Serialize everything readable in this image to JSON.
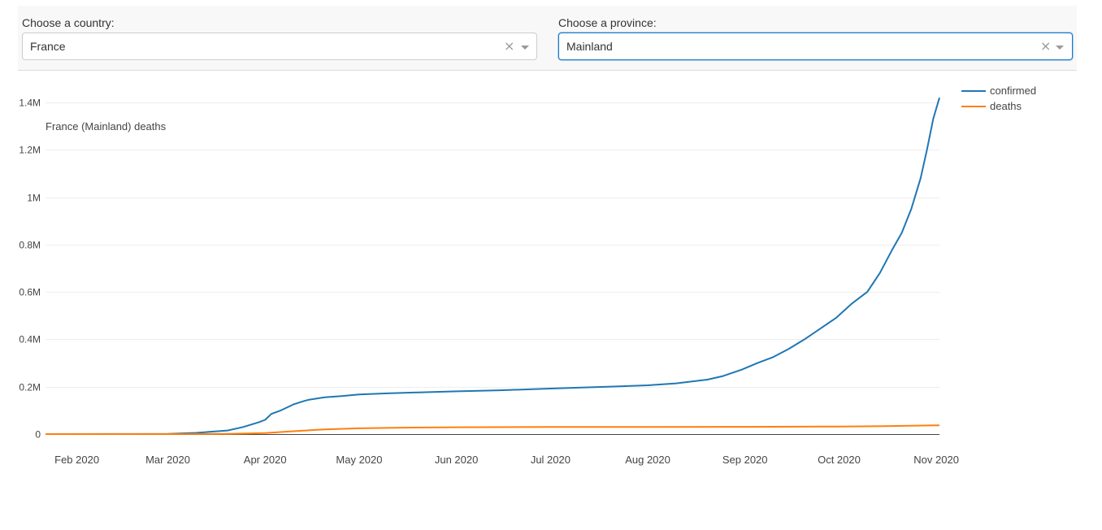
{
  "controls": {
    "country": {
      "label": "Choose a country:",
      "value": "France",
      "clear_glyph": "×"
    },
    "province": {
      "label": "Choose a province:",
      "value": "Mainland",
      "clear_glyph": "×"
    }
  },
  "chart_data": {
    "type": "line",
    "annotation": "France (Mainland) deaths",
    "x_tick_labels": [
      "Feb 2020",
      "Mar 2020",
      "Apr 2020",
      "May 2020",
      "Jun 2020",
      "Jul 2020",
      "Aug 2020",
      "Sep 2020",
      "Oct 2020",
      "Nov 2020"
    ],
    "x_tick_dates": [
      "2020-02-01",
      "2020-03-01",
      "2020-04-01",
      "2020-05-01",
      "2020-06-01",
      "2020-07-01",
      "2020-08-01",
      "2020-09-01",
      "2020-10-01",
      "2020-11-01"
    ],
    "y_ticks": [
      0,
      200000,
      400000,
      600000,
      800000,
      1000000,
      1200000,
      1400000
    ],
    "y_tick_labels": [
      "0",
      "0.2M",
      "0.4M",
      "0.6M",
      "0.8M",
      "1M",
      "1.2M",
      "1.4M"
    ],
    "xlim": [
      "2020-01-22",
      "2020-11-02"
    ],
    "ylim": [
      0,
      1400000
    ],
    "grid": true,
    "legend_position": "top-right",
    "series": [
      {
        "name": "confirmed",
        "color": "#1f77b4",
        "x": [
          "2020-01-22",
          "2020-02-15",
          "2020-03-01",
          "2020-03-10",
          "2020-03-20",
          "2020-03-25",
          "2020-03-30",
          "2020-04-01",
          "2020-04-03",
          "2020-04-06",
          "2020-04-10",
          "2020-04-13",
          "2020-04-15",
          "2020-04-20",
          "2020-04-25",
          "2020-05-01",
          "2020-05-10",
          "2020-05-20",
          "2020-05-31",
          "2020-06-15",
          "2020-07-01",
          "2020-07-15",
          "2020-08-01",
          "2020-08-10",
          "2020-08-20",
          "2020-08-25",
          "2020-08-31",
          "2020-09-05",
          "2020-09-10",
          "2020-09-15",
          "2020-09-20",
          "2020-09-25",
          "2020-09-30",
          "2020-10-05",
          "2020-10-10",
          "2020-10-14",
          "2020-10-18",
          "2020-10-21",
          "2020-10-24",
          "2020-10-27",
          "2020-10-29",
          "2020-10-31",
          "2020-11-02"
        ],
        "y": [
          0,
          200,
          1000,
          5000,
          15000,
          30000,
          50000,
          60000,
          85000,
          100000,
          125000,
          138000,
          145000,
          155000,
          160000,
          167000,
          172000,
          176000,
          180000,
          185000,
          192000,
          198000,
          206000,
          214000,
          230000,
          245000,
          272000,
          300000,
          325000,
          360000,
          400000,
          445000,
          490000,
          550000,
          600000,
          680000,
          780000,
          850000,
          950000,
          1080000,
          1200000,
          1330000,
          1420000
        ]
      },
      {
        "name": "deaths",
        "color": "#ff7f0e",
        "x": [
          "2020-01-22",
          "2020-03-10",
          "2020-03-20",
          "2020-04-01",
          "2020-04-10",
          "2020-04-20",
          "2020-05-01",
          "2020-05-15",
          "2020-06-01",
          "2020-07-01",
          "2020-08-01",
          "2020-09-01",
          "2020-10-01",
          "2020-10-15",
          "2020-11-02"
        ],
        "y": [
          0,
          200,
          1000,
          4000,
          12000,
          20000,
          24500,
          27000,
          28800,
          29800,
          30300,
          30700,
          32000,
          33500,
          37000
        ]
      }
    ]
  }
}
